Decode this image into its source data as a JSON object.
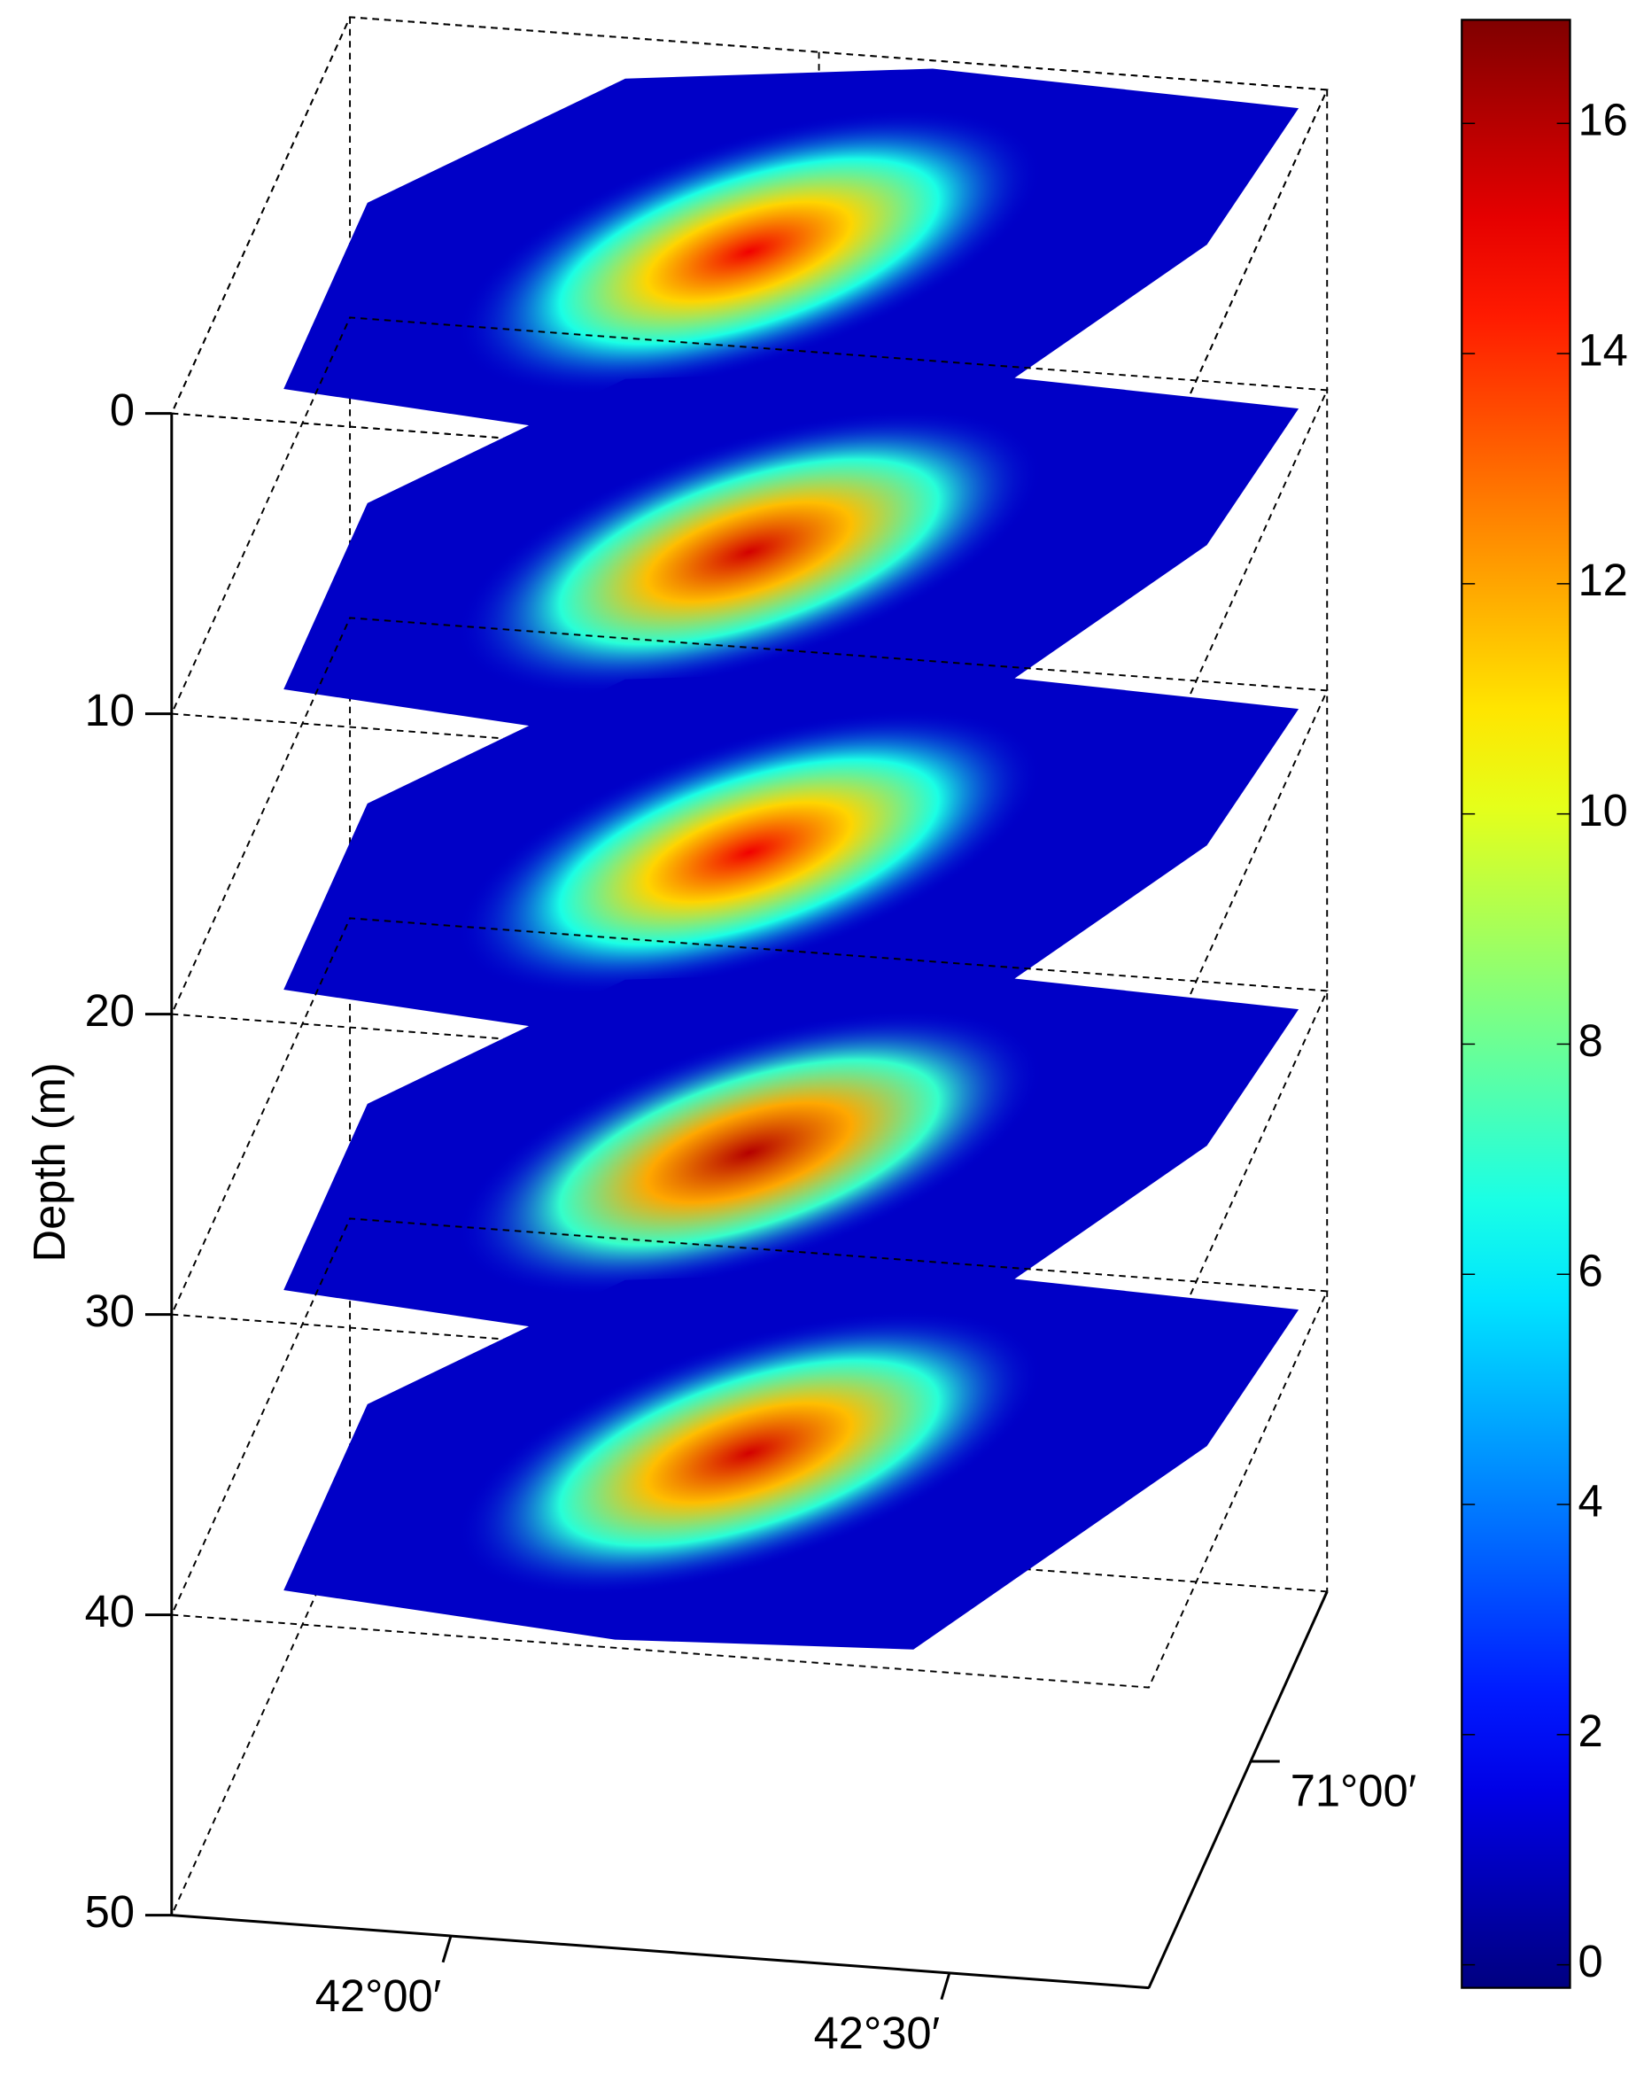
{
  "chart_data": {
    "type": "slice3d",
    "zlabel": "Depth (m)",
    "zlim": [
      0,
      50
    ],
    "zticks": [
      0,
      10,
      20,
      30,
      40,
      50
    ],
    "xlim": [
      41.72,
      42.7
    ],
    "xticks": [
      {
        "value": 42,
        "label": "42°00′"
      },
      {
        "value": 42.5,
        "label": "42°30′"
      }
    ],
    "ylim": [
      -71.4,
      -70.7
    ],
    "yticks": [
      {
        "value": -71,
        "label": "71°00′"
      }
    ],
    "clim": [
      -0.2,
      16.9
    ],
    "cticks": [
      0,
      2,
      4,
      6,
      8,
      10,
      12,
      14,
      16
    ],
    "colormap": "jet",
    "slices": [
      {
        "depth": 0,
        "peak": 15
      },
      {
        "depth": 10,
        "peak": 15.5
      },
      {
        "depth": 20,
        "peak": 15
      },
      {
        "depth": 30,
        "peak": 16
      },
      {
        "depth": 40,
        "peak": 15.5
      }
    ]
  }
}
